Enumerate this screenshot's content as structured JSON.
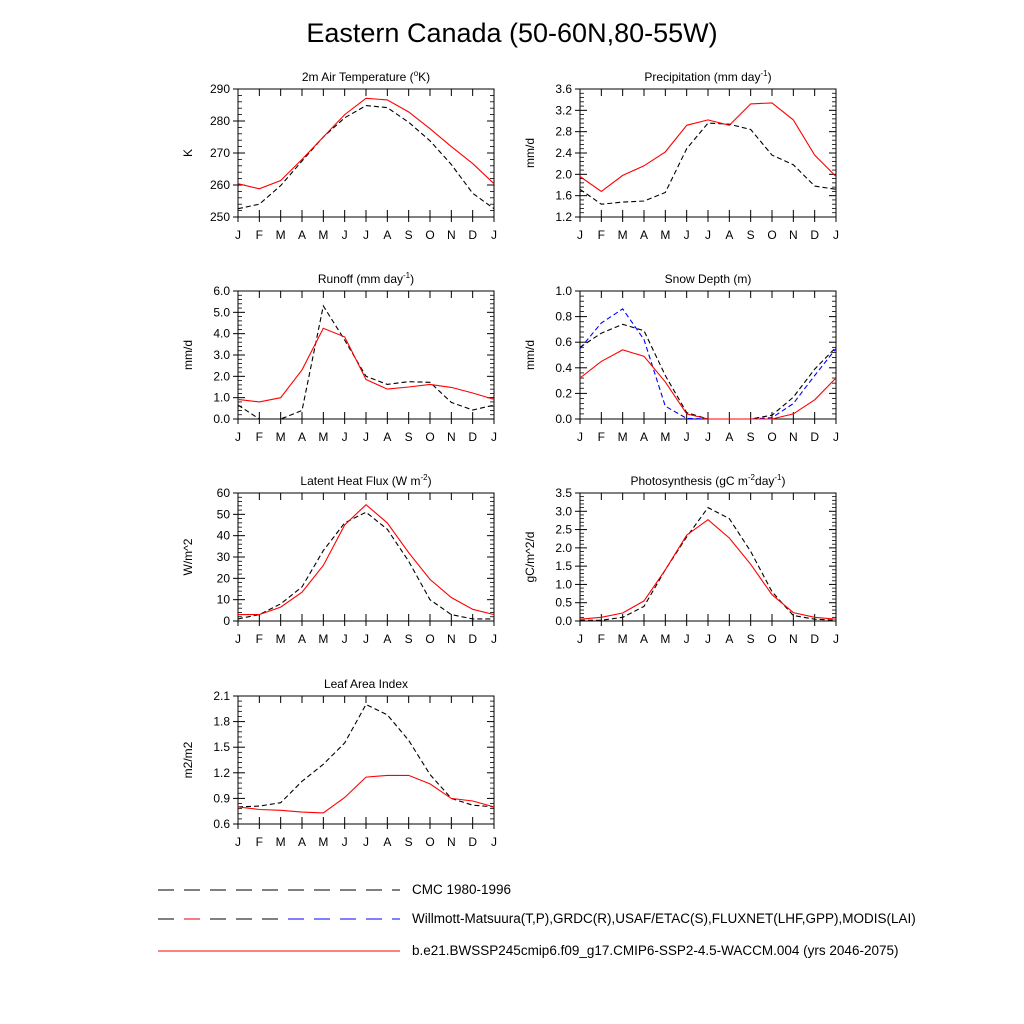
{
  "title": "Eastern Canada (50-60N,80-55W)",
  "colors": {
    "cmc": "#000000",
    "obs": "#000000",
    "obs_snow": "#0000ff",
    "model": "#ff0000"
  },
  "legend": [
    {
      "label": "CMC 1980-1996",
      "style": "dashed",
      "color": "#000000"
    },
    {
      "label": "Willmott-Matsuura(T,P),GRDC(R),USAF/ETAC(S),FLUXNET(LHF,GPP),MODIS(LAI)",
      "style": "dashed-mixed",
      "color": "#000000"
    },
    {
      "label": "b.e21.BWSSP245cmip6.f09_g17.CMIP6-SSP2-4.5-WACCM.004 (yrs 2046-2075)",
      "style": "solid",
      "color": "#ff0000"
    }
  ],
  "chart_data": [
    {
      "type": "line",
      "title": "2m Air Temperature (°K)",
      "title_parts": [
        "2m Air Temperature (",
        "o",
        "K)"
      ],
      "ylabel": "K",
      "ylim": [
        250,
        290
      ],
      "yticks": [
        250,
        260,
        270,
        280,
        290
      ],
      "ytick_labels": [
        "250",
        "260",
        "270",
        "280",
        "290"
      ],
      "categories": [
        "J",
        "F",
        "M",
        "A",
        "M",
        "J",
        "J",
        "A",
        "S",
        "O",
        "N",
        "D",
        "J"
      ],
      "series": [
        {
          "key": "obs",
          "style": "dashed",
          "color": "#000000",
          "values": [
            252.6,
            254.0,
            259.8,
            267.5,
            275.0,
            281.0,
            284.8,
            284.2,
            279.6,
            273.8,
            266.4,
            257.4,
            252.6
          ]
        },
        {
          "key": "model",
          "style": "solid",
          "color": "#ff0000",
          "values": [
            260.4,
            258.8,
            261.4,
            268.0,
            275.0,
            282.0,
            287.1,
            286.6,
            282.8,
            277.6,
            272.0,
            266.7,
            260.4
          ]
        }
      ]
    },
    {
      "type": "line",
      "title": "Precipitation (mm day-1)",
      "title_parts": [
        "Precipitation (mm day",
        "-1",
        ")"
      ],
      "ylabel": "mm/d",
      "ylim": [
        1.2,
        3.6
      ],
      "yticks": [
        1.2,
        1.6,
        2.0,
        2.4,
        2.8,
        3.2,
        3.6
      ],
      "ytick_labels": [
        "1.2",
        "1.6",
        "2.0",
        "2.4",
        "2.8",
        "3.2",
        "3.6"
      ],
      "categories": [
        "J",
        "F",
        "M",
        "A",
        "M",
        "J",
        "J",
        "A",
        "S",
        "O",
        "N",
        "D",
        "J"
      ],
      "series": [
        {
          "key": "obs",
          "style": "dashed",
          "color": "#000000",
          "values": [
            1.72,
            1.44,
            1.48,
            1.5,
            1.66,
            2.48,
            2.96,
            2.94,
            2.84,
            2.36,
            2.18,
            1.78,
            1.72
          ]
        },
        {
          "key": "model",
          "style": "solid",
          "color": "#ff0000",
          "values": [
            1.96,
            1.68,
            1.98,
            2.16,
            2.42,
            2.92,
            3.02,
            2.92,
            3.32,
            3.34,
            3.02,
            2.36,
            1.96
          ]
        }
      ]
    },
    {
      "type": "line",
      "title": "Runoff (mm day-1)",
      "title_parts": [
        "Runoff (mm day",
        "-1",
        ")"
      ],
      "ylabel": "mm/d",
      "ylim": [
        0.0,
        6.0
      ],
      "yticks": [
        0,
        1,
        2,
        3,
        4,
        5,
        6
      ],
      "ytick_labels": [
        "0.0",
        "1.0",
        "2.0",
        "3.0",
        "4.0",
        "5.0",
        "6.0"
      ],
      "categories": [
        "J",
        "F",
        "M",
        "A",
        "M",
        "J",
        "J",
        "A",
        "S",
        "O",
        "N",
        "D",
        "J"
      ],
      "series": [
        {
          "key": "obs",
          "style": "dashed",
          "color": "#000000",
          "values": [
            0.65,
            0.0,
            0.0,
            0.4,
            5.3,
            3.7,
            2.0,
            1.62,
            1.75,
            1.72,
            0.78,
            0.42,
            0.65
          ]
        },
        {
          "key": "model",
          "style": "solid",
          "color": "#ff0000",
          "values": [
            0.92,
            0.8,
            1.0,
            2.3,
            4.25,
            3.85,
            1.85,
            1.4,
            1.5,
            1.62,
            1.48,
            1.22,
            0.92
          ]
        }
      ]
    },
    {
      "type": "line",
      "title": "Snow Depth (m)",
      "title_parts": [
        "Snow Depth (m)"
      ],
      "ylabel": "mm/d",
      "ylim": [
        0.0,
        1.0
      ],
      "yticks": [
        0,
        0.2,
        0.4,
        0.6,
        0.8,
        1.0
      ],
      "ytick_labels": [
        "0.0",
        "0.2",
        "0.4",
        "0.6",
        "0.8",
        "1.0"
      ],
      "categories": [
        "J",
        "F",
        "M",
        "A",
        "M",
        "J",
        "J",
        "A",
        "S",
        "O",
        "N",
        "D",
        "J"
      ],
      "series": [
        {
          "key": "obs_snow",
          "style": "dashed",
          "color": "#0000ff",
          "values": [
            0.55,
            0.75,
            0.86,
            0.62,
            0.1,
            0.005,
            0.0,
            0.0,
            0.0,
            0.01,
            0.12,
            0.34,
            0.55
          ]
        },
        {
          "key": "cmc",
          "style": "dashed",
          "color": "#000000",
          "values": [
            0.56,
            0.67,
            0.74,
            0.69,
            0.34,
            0.05,
            0.0,
            0.0,
            0.0,
            0.03,
            0.17,
            0.39,
            0.56
          ]
        },
        {
          "key": "model",
          "style": "solid",
          "color": "#ff0000",
          "values": [
            0.32,
            0.45,
            0.54,
            0.49,
            0.29,
            0.04,
            0.0,
            0.0,
            0.0,
            0.0,
            0.04,
            0.15,
            0.32
          ]
        }
      ]
    },
    {
      "type": "line",
      "title": "Latent Heat Flux (W m-2)",
      "title_parts": [
        "Latent Heat Flux (W m",
        "-2",
        ")"
      ],
      "ylabel": "W/m^2",
      "ylim": [
        0,
        60
      ],
      "yticks": [
        0,
        10,
        20,
        30,
        40,
        50,
        60
      ],
      "ytick_labels": [
        "0",
        "10",
        "20",
        "30",
        "40",
        "50",
        "60"
      ],
      "categories": [
        "J",
        "F",
        "M",
        "A",
        "M",
        "J",
        "J",
        "A",
        "S",
        "O",
        "N",
        "D",
        "J"
      ],
      "series": [
        {
          "key": "obs",
          "style": "dashed",
          "color": "#000000",
          "values": [
            1,
            3,
            8,
            16,
            33,
            46,
            51,
            43,
            28,
            10,
            3,
            1,
            1
          ]
        },
        {
          "key": "model",
          "style": "solid",
          "color": "#ff0000",
          "values": [
            3,
            3,
            6.5,
            13.5,
            26,
            45,
            54.5,
            46,
            32,
            19.5,
            11,
            5.5,
            3
          ]
        }
      ]
    },
    {
      "type": "line",
      "title": "Photosynthesis (gC m-2day-1)",
      "title_parts": [
        "Photosynthesis (gC m",
        "-2",
        "day",
        "-1",
        ")"
      ],
      "ylabel": "gC/m^2/d",
      "ylim": [
        0.0,
        3.5
      ],
      "yticks": [
        0,
        0.5,
        1.0,
        1.5,
        2.0,
        2.5,
        3.0,
        3.5
      ],
      "ytick_labels": [
        "0.0",
        "0.5",
        "1.0",
        "1.5",
        "2.0",
        "2.5",
        "3.0",
        "3.5"
      ],
      "categories": [
        "J",
        "F",
        "M",
        "A",
        "M",
        "J",
        "J",
        "A",
        "S",
        "O",
        "N",
        "D",
        "J"
      ],
      "series": [
        {
          "key": "obs",
          "style": "dashed",
          "color": "#000000",
          "values": [
            0.02,
            0.02,
            0.1,
            0.4,
            1.4,
            2.3,
            3.1,
            2.8,
            1.9,
            0.8,
            0.15,
            0.05,
            0.02
          ]
        },
        {
          "key": "model",
          "style": "solid",
          "color": "#ff0000",
          "values": [
            0.05,
            0.1,
            0.22,
            0.55,
            1.4,
            2.35,
            2.77,
            2.27,
            1.55,
            0.72,
            0.23,
            0.1,
            0.05
          ]
        }
      ]
    },
    {
      "type": "line",
      "title": "Leaf Area Index",
      "title_parts": [
        "Leaf Area Index"
      ],
      "ylabel": "m2/m2",
      "ylim": [
        0.6,
        2.1
      ],
      "yticks": [
        0.6,
        0.9,
        1.2,
        1.5,
        1.8,
        2.1
      ],
      "ytick_labels": [
        "0.6",
        "0.9",
        "1.2",
        "1.5",
        "1.8",
        "2.1"
      ],
      "categories": [
        "J",
        "F",
        "M",
        "A",
        "M",
        "J",
        "J",
        "A",
        "S",
        "O",
        "N",
        "D",
        "J"
      ],
      "series": [
        {
          "key": "obs",
          "style": "dashed",
          "color": "#000000",
          "values": [
            0.8,
            0.81,
            0.85,
            1.1,
            1.3,
            1.55,
            2.0,
            1.88,
            1.58,
            1.18,
            0.9,
            0.82,
            0.8
          ]
        },
        {
          "key": "model",
          "style": "solid",
          "color": "#ff0000",
          "values": [
            0.8,
            0.77,
            0.76,
            0.74,
            0.73,
            0.91,
            1.15,
            1.17,
            1.17,
            1.07,
            0.9,
            0.87,
            0.8
          ]
        }
      ]
    }
  ]
}
